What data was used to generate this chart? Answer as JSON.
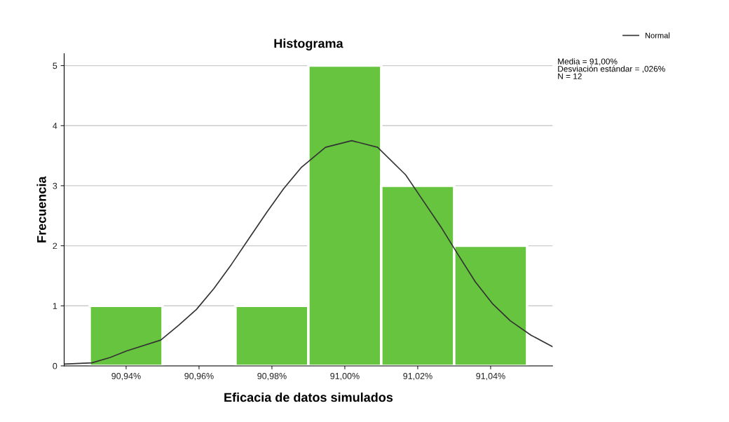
{
  "chart_data": {
    "type": "histogram",
    "title": "Histograma",
    "xlabel": "Eficacia de datos simulados",
    "ylabel": "Frecuencia",
    "series": [
      {
        "type": "histogram",
        "color": "#66c43f",
        "bins": [
          90.93,
          90.95,
          90.97,
          90.99,
          91.01,
          91.03,
          91.05
        ],
        "values": [
          1,
          0,
          1,
          5,
          3,
          2
        ]
      },
      {
        "type": "line",
        "name": "Normal",
        "color": "#333333",
        "x": [
          90.923,
          90.9306,
          90.9356,
          90.9402,
          90.9495,
          90.9545,
          90.9593,
          90.9641,
          90.9689,
          90.9737,
          90.9785,
          90.9832,
          90.988,
          90.9947,
          91.0019,
          91.009,
          91.0167,
          91.0215,
          91.0263,
          91.031,
          91.0358,
          91.0406,
          91.0454,
          91.0511,
          91.057
        ],
        "values": [
          0.03,
          0.05,
          0.14,
          0.25,
          0.43,
          0.68,
          0.94,
          1.29,
          1.69,
          2.12,
          2.55,
          2.95,
          3.3,
          3.64,
          3.75,
          3.64,
          3.18,
          2.75,
          2.32,
          1.86,
          1.4,
          1.03,
          0.75,
          0.51,
          0.32
        ]
      }
    ],
    "xlim": [
      90.923,
      91.057
    ],
    "xticks": [
      {
        "value": 90.94,
        "label": "90,94%"
      },
      {
        "value": 90.96,
        "label": "90,96%"
      },
      {
        "value": 90.98,
        "label": "90,98%"
      },
      {
        "value": 91.0,
        "label": "91,00%"
      },
      {
        "value": 91.02,
        "label": "91,02%"
      },
      {
        "value": 91.04,
        "label": "91,04%"
      }
    ],
    "ylim": [
      0,
      5.2
    ],
    "yticks": [
      0,
      1,
      2,
      3,
      4,
      5
    ],
    "grid": "y",
    "legend": "top right",
    "annotations": [
      "Media = 91,00%\nDesviación estándar = ,026%\nN = 12"
    ]
  }
}
